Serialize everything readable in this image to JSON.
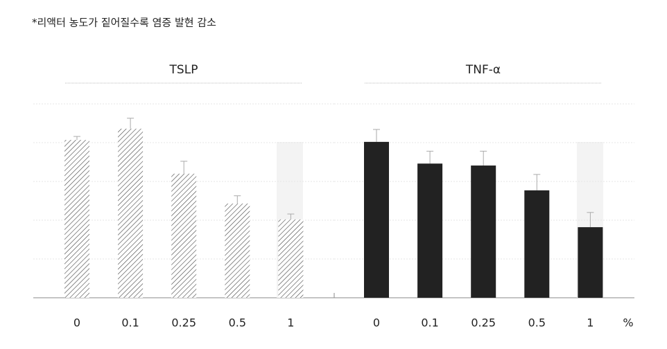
{
  "title": "*리액터 농도가 짙어질수록 염증 발현 감소",
  "unit": "%",
  "chart_data": [
    {
      "type": "bar",
      "title": "TSLP",
      "categories": [
        "0",
        "0.1",
        "0.25",
        "0.5",
        "1"
      ],
      "values": [
        4.07,
        4.36,
        3.2,
        2.43,
        2.02
      ],
      "errors": [
        0.09,
        0.27,
        0.32,
        0.2,
        0.14
      ],
      "color": "#444444",
      "hatch": true,
      "ylim": [
        0,
        5
      ],
      "yticks": [
        1,
        2,
        3,
        4,
        5
      ],
      "grid": true
    },
    {
      "type": "bar",
      "title": "TNF-α",
      "categories": [
        "0",
        "0.1",
        "0.25",
        "0.5",
        "1"
      ],
      "values": [
        4.02,
        3.46,
        3.41,
        2.77,
        1.82
      ],
      "errors": [
        0.32,
        0.32,
        0.37,
        0.41,
        0.38
      ],
      "color": "#222222",
      "hatch": false,
      "ylim": [
        0,
        5
      ],
      "yticks": [
        1,
        2,
        3,
        4,
        5
      ],
      "grid": true
    }
  ]
}
